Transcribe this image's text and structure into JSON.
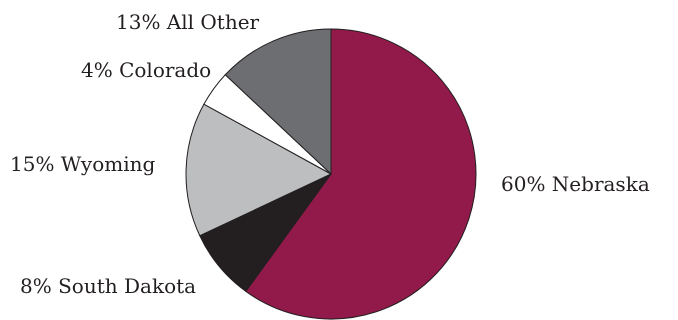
{
  "chart_data": {
    "type": "pie",
    "title": "",
    "slices": [
      {
        "label": "60% Nebraska",
        "name": "Nebraska",
        "value": 60,
        "color": "#921a4a"
      },
      {
        "label": "8% South Dakota",
        "name": "South Dakota",
        "value": 8,
        "color": "#231f20"
      },
      {
        "label": "15% Wyoming",
        "name": "Wyoming",
        "value": 15,
        "color": "#bcbec0"
      },
      {
        "label": "4% Colorado",
        "name": "Colorado",
        "value": 4,
        "color": "#ffffff"
      },
      {
        "label": "13% All Other",
        "name": "All Other",
        "value": 13,
        "color": "#6d6e71"
      }
    ],
    "start": "12 o'clock",
    "direction": "clockwise",
    "outline_color": "#231f20",
    "legend": "none"
  }
}
